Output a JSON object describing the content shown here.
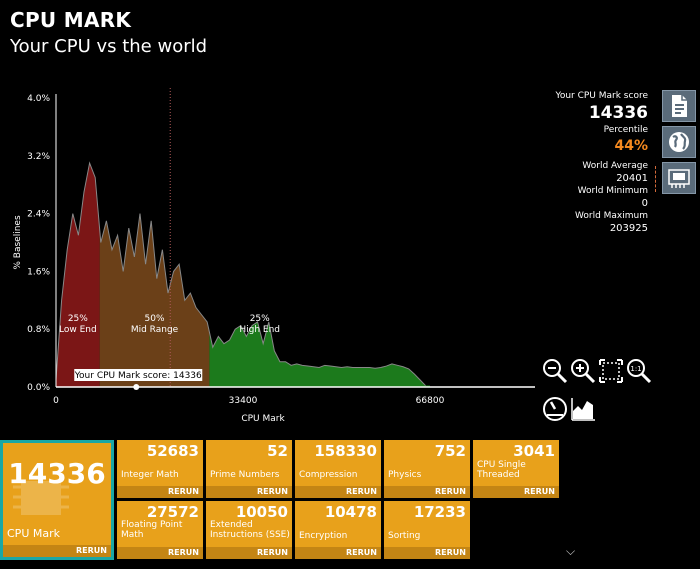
{
  "header": {
    "title": "CPU MARK",
    "subtitle": "Your CPU vs the world"
  },
  "chart_data": {
    "type": "area",
    "ylabel": "% Baselines",
    "xlabel": "CPU Mark",
    "x_ticks": [
      "0",
      "33400",
      "66800"
    ],
    "y_ticks": [
      "0.0%",
      "0.8%",
      "1.6%",
      "2.4%",
      "3.2%",
      "4.0%"
    ],
    "xlim": [
      0,
      66800
    ],
    "ylim": [
      0,
      4.0
    ],
    "x": [
      0,
      1000,
      2000,
      3000,
      4000,
      5000,
      6000,
      7000,
      8000,
      9000,
      10000,
      11000,
      12000,
      13000,
      14000,
      15000,
      16000,
      17000,
      18000,
      19000,
      20000,
      21000,
      22000,
      23000,
      24000,
      25000,
      26000,
      27000,
      28000,
      29000,
      30000,
      31000,
      32000,
      33000,
      34000,
      35000,
      36000,
      37000,
      38000,
      39000,
      40000,
      41000,
      42000,
      43000,
      44000,
      45000,
      46000,
      47000,
      48000,
      49000,
      50000,
      51000,
      52000,
      53000,
      54000,
      55000,
      56000,
      57000,
      58000,
      59000,
      60000,
      61000,
      62000,
      63000,
      64000,
      65000,
      66000
    ],
    "y": [
      0.1,
      1.2,
      1.9,
      2.4,
      2.1,
      2.7,
      3.1,
      2.9,
      2.0,
      2.3,
      1.9,
      2.1,
      1.6,
      2.2,
      1.8,
      2.4,
      1.7,
      2.3,
      1.5,
      1.9,
      1.3,
      1.6,
      1.7,
      1.2,
      1.3,
      1.1,
      1.0,
      0.9,
      0.55,
      0.7,
      0.6,
      0.65,
      0.8,
      0.85,
      0.7,
      0.85,
      0.9,
      0.6,
      0.9,
      0.5,
      0.35,
      0.35,
      0.3,
      0.32,
      0.3,
      0.29,
      0.28,
      0.27,
      0.3,
      0.29,
      0.28,
      0.27,
      0.28,
      0.27,
      0.27,
      0.27,
      0.27,
      0.26,
      0.27,
      0.29,
      0.32,
      0.3,
      0.28,
      0.25,
      0.18,
      0.1,
      0.02
    ],
    "bands": [
      {
        "pct": "25%",
        "label": "Low End",
        "from": 0,
        "to": 7800,
        "color": "#7b1616"
      },
      {
        "pct": "50%",
        "label": "Mid Range",
        "from": 7800,
        "to": 27400,
        "color": "#6b4018"
      },
      {
        "pct": "25%",
        "label": "High End",
        "from": 27400,
        "to": 66800,
        "color": "#1c7a1c"
      }
    ],
    "world_average_x": 20401,
    "marker_x": 14336,
    "marker_label": "Your CPU Mark score: 14336"
  },
  "score_panel": {
    "score_label": "Your CPU Mark score",
    "score": "14336",
    "percentile_label": "Percentile",
    "percentile": "44%",
    "world_avg_label": "World Average",
    "world_avg": "20401",
    "world_min_label": "World Minimum",
    "world_min": "0",
    "world_max_label": "World Maximum",
    "world_max": "203925"
  },
  "main_tile": {
    "value": "14336",
    "name": "CPU Mark",
    "rerun": "RERUN"
  },
  "tiles": [
    {
      "value": "52683",
      "name": "Integer Math",
      "rerun": "RERUN"
    },
    {
      "value": "52",
      "name": "Prime Numbers",
      "rerun": "RERUN"
    },
    {
      "value": "158330",
      "name": "Compression",
      "rerun": "RERUN"
    },
    {
      "value": "752",
      "name": "Physics",
      "rerun": "RERUN"
    },
    {
      "value": "3041",
      "name": "CPU Single Threaded",
      "rerun": "RERUN"
    },
    {
      "value": "27572",
      "name": "Floating Point Math",
      "rerun": "RERUN"
    },
    {
      "value": "10050",
      "name": "Extended Instructions (SSE)",
      "rerun": "RERUN"
    },
    {
      "value": "10478",
      "name": "Encryption",
      "rerun": "RERUN"
    },
    {
      "value": "17233",
      "name": "Sorting",
      "rerun": "RERUN"
    }
  ],
  "colors": {
    "accent": "#e8a11b",
    "selected_border": "#1aa7a5",
    "percentile": "#f5891f"
  }
}
